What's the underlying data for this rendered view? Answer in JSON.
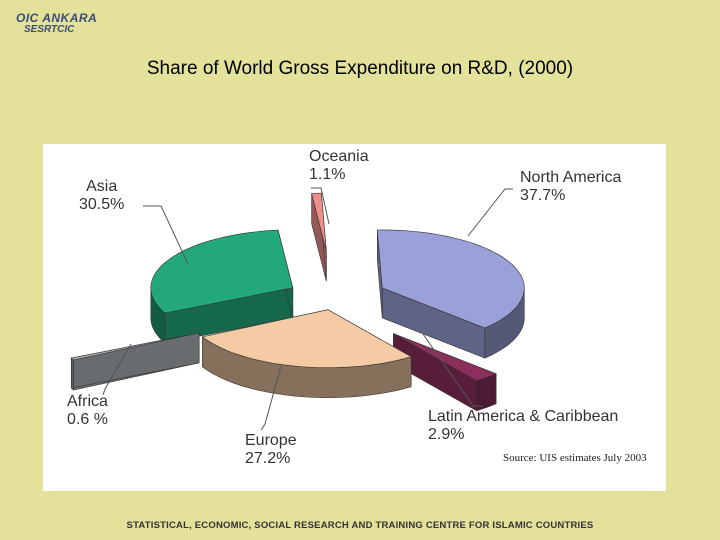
{
  "header": {
    "logo_line1": "OIC ANKARA",
    "logo_line2": "SESRTCIC"
  },
  "footer": {
    "text": "STATISTICAL, ECONOMIC, SOCIAL RESEARCH AND TRAINING CENTRE FOR ISLAMIC COUNTRIES"
  },
  "chart_data": {
    "type": "pie",
    "title": "Share of World Gross Expenditure on R&D, (2000)",
    "source": "Source: UIS estimates July 2003",
    "categories": [
      "North America",
      "Latin America & Caribbean",
      "Europe",
      "Africa",
      "Asia",
      "Oceania"
    ],
    "values": [
      37.7,
      2.9,
      27.2,
      0.6,
      30.5,
      1.1
    ],
    "value_labels": [
      "37.7%",
      "2.9%",
      "27.2%",
      "0.6 %",
      "30.5%",
      "1.1%"
    ],
    "colors": {
      "North America": "#9aa0d8",
      "Latin America & Caribbean": "#8c2f5c",
      "Europe": "#f4cba5",
      "Africa": "#a9aeb3",
      "Asia": "#22a87a",
      "Oceania": "#ef8f8b"
    },
    "style": "3d-exploded",
    "legend": "none (callout labels)"
  }
}
